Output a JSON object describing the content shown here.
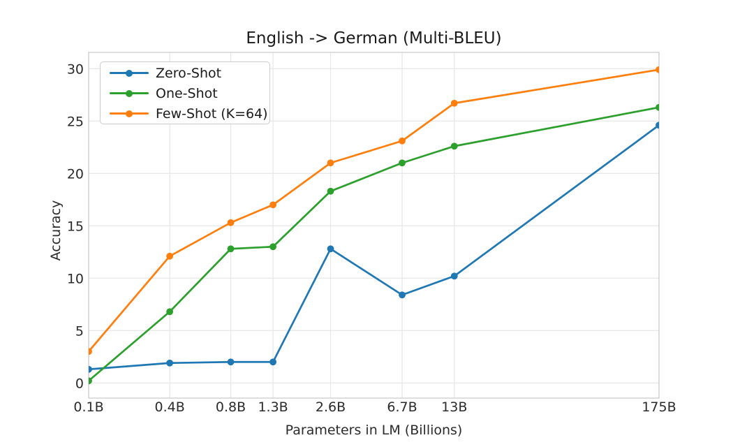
{
  "chart_data": {
    "type": "line",
    "title": "English -> German (Multi-BLEU)",
    "xlabel": "Parameters in LM (Billions)",
    "ylabel": "Accuracy",
    "x_scale": "log",
    "x": [
      0.125,
      0.35,
      0.76,
      1.3,
      2.7,
      6.7,
      13,
      175
    ],
    "x_tick_labels": [
      "0.1B",
      "0.4B",
      "0.8B",
      "1.3B",
      "2.6B",
      "6.7B",
      "13B",
      "175B"
    ],
    "y_ticks": [
      0,
      5,
      10,
      15,
      20,
      25,
      30
    ],
    "ylim": [
      0,
      30
    ],
    "grid": true,
    "legend_position": "upper-left",
    "colors": {
      "grid": "#e6e6e6",
      "frame": "#cccccc",
      "text": "#2b2b2b"
    },
    "series": [
      {
        "name": "Zero-Shot",
        "color": "#1f77b4",
        "values": [
          1.3,
          1.9,
          2.0,
          2.0,
          12.8,
          8.4,
          10.2,
          24.6
        ]
      },
      {
        "name": "One-Shot",
        "color": "#2ca02c",
        "values": [
          0.2,
          6.8,
          12.8,
          13.0,
          18.3,
          21.0,
          22.6,
          26.3
        ]
      },
      {
        "name": "Few-Shot (K=64)",
        "color": "#ff7f0e",
        "values": [
          3.0,
          12.1,
          15.3,
          17.0,
          21.0,
          23.1,
          26.7,
          29.9
        ]
      }
    ]
  }
}
